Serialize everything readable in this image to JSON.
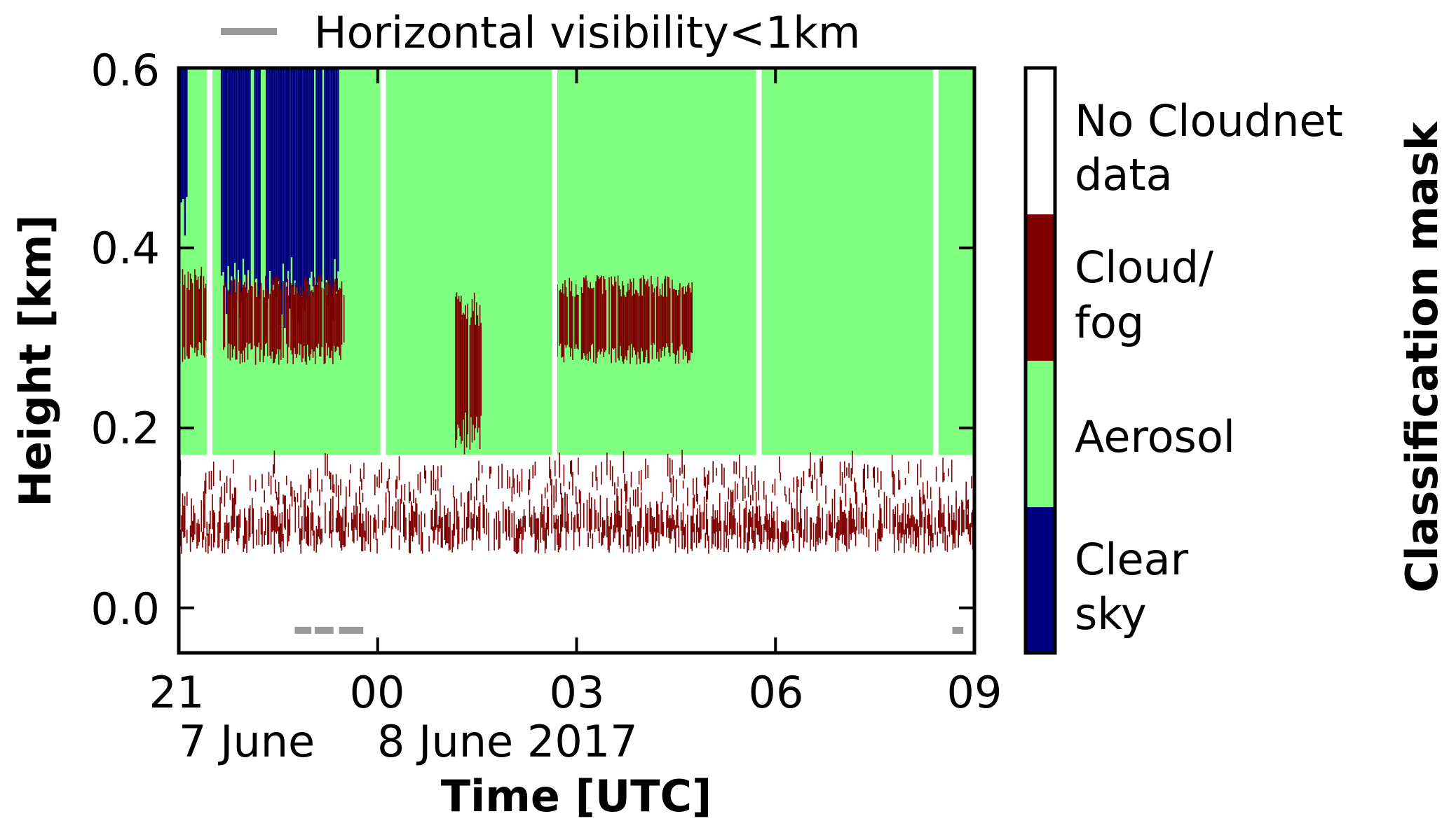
{
  "chart_data": {
    "type": "heatmap",
    "title": "",
    "xlabel": "Time [UTC]",
    "ylabel": "Height [km]",
    "x_range_hours_utc": [
      21,
      33
    ],
    "xlim": [
      "2017-06-07 21:00 UTC",
      "2017-06-08 09:00 UTC"
    ],
    "ylim": [
      -0.05,
      0.6
    ],
    "x_ticks": [
      {
        "time": "2017-06-07 21:00",
        "label": "21"
      },
      {
        "time": "2017-06-08 00:00",
        "label": "00"
      },
      {
        "time": "2017-06-08 03:00",
        "label": "03"
      },
      {
        "time": "2017-06-08 06:00",
        "label": "06"
      },
      {
        "time": "2017-06-08 09:00",
        "label": "09"
      }
    ],
    "y_ticks": [
      {
        "value": 0.0,
        "label": "0.0"
      },
      {
        "value": 0.2,
        "label": "0.2"
      },
      {
        "value": 0.4,
        "label": "0.4"
      },
      {
        "value": 0.6,
        "label": "0.6"
      }
    ],
    "date_labels": [
      {
        "text": "7 June"
      },
      {
        "text": "8 June 2017"
      }
    ],
    "legend": {
      "placement": "top",
      "entries": [
        {
          "label": "Horizontal visibility<1km",
          "color": "#999999"
        }
      ]
    },
    "colorbar": {
      "label": "Classification mask",
      "classes": [
        {
          "label": "No Cloudnet data",
          "lines": [
            "No Cloudnet",
            "data"
          ],
          "color": "#ffffff"
        },
        {
          "label": "Cloud/ fog",
          "lines": [
            "Cloud/",
            "fog"
          ],
          "color": "#7f0000"
        },
        {
          "label": "Aerosol",
          "lines": [
            "Aerosol"
          ],
          "color": "#7fff7f"
        },
        {
          "label": "Clear sky",
          "lines": [
            "Clear",
            "sky"
          ],
          "color": "#000080"
        }
      ]
    },
    "low_visibility_periods_utc": [
      [
        "2017-06-07 22:45",
        "2017-06-07 23:00"
      ],
      [
        "2017-06-07 23:03",
        "2017-06-07 23:20"
      ],
      [
        "2017-06-07 23:25",
        "2017-06-07 23:47"
      ],
      [
        "2017-06-08 08:40",
        "2017-06-08 08:50"
      ]
    ],
    "aerosol_region": {
      "height_km": [
        0.17,
        0.6
      ],
      "time_utc": [
        "2017-06-07 21:00",
        "2017-06-08 09:00"
      ]
    },
    "clear_sky_regions": [
      {
        "time_utc": [
          "2017-06-07 21:00",
          "2017-06-07 21:08"
        ],
        "height_km": [
          0.42,
          0.6
        ]
      },
      {
        "time_utc": [
          "2017-06-07 21:38",
          "2017-06-07 23:25"
        ],
        "height_km": [
          0.33,
          0.6
        ]
      }
    ],
    "no_data_gaps_utc": [
      "2017-06-07 21:28",
      "2017-06-08 00:05",
      "2017-06-08 02:40",
      "2017-06-08 05:45",
      "2017-06-08 08:25"
    ],
    "cloud_fog_regions": [
      {
        "time_utc": [
          "2017-06-07 21:00",
          "2017-06-07 21:25"
        ],
        "height_km": [
          0.27,
          0.38
        ]
      },
      {
        "time_utc": [
          "2017-06-07 21:40",
          "2017-06-07 23:30"
        ],
        "height_km": [
          0.27,
          0.37
        ]
      },
      {
        "time_utc": [
          "2017-06-08 01:10",
          "2017-06-08 01:35"
        ],
        "height_km": [
          0.17,
          0.36
        ]
      },
      {
        "time_utc": [
          "2017-06-08 02:40",
          "2017-06-08 04:45"
        ],
        "height_km": [
          0.27,
          0.37
        ]
      },
      {
        "time_utc": [
          "2017-06-07 21:00",
          "2017-06-08 09:00"
        ],
        "height_km": [
          0.03,
          0.17
        ]
      }
    ]
  }
}
